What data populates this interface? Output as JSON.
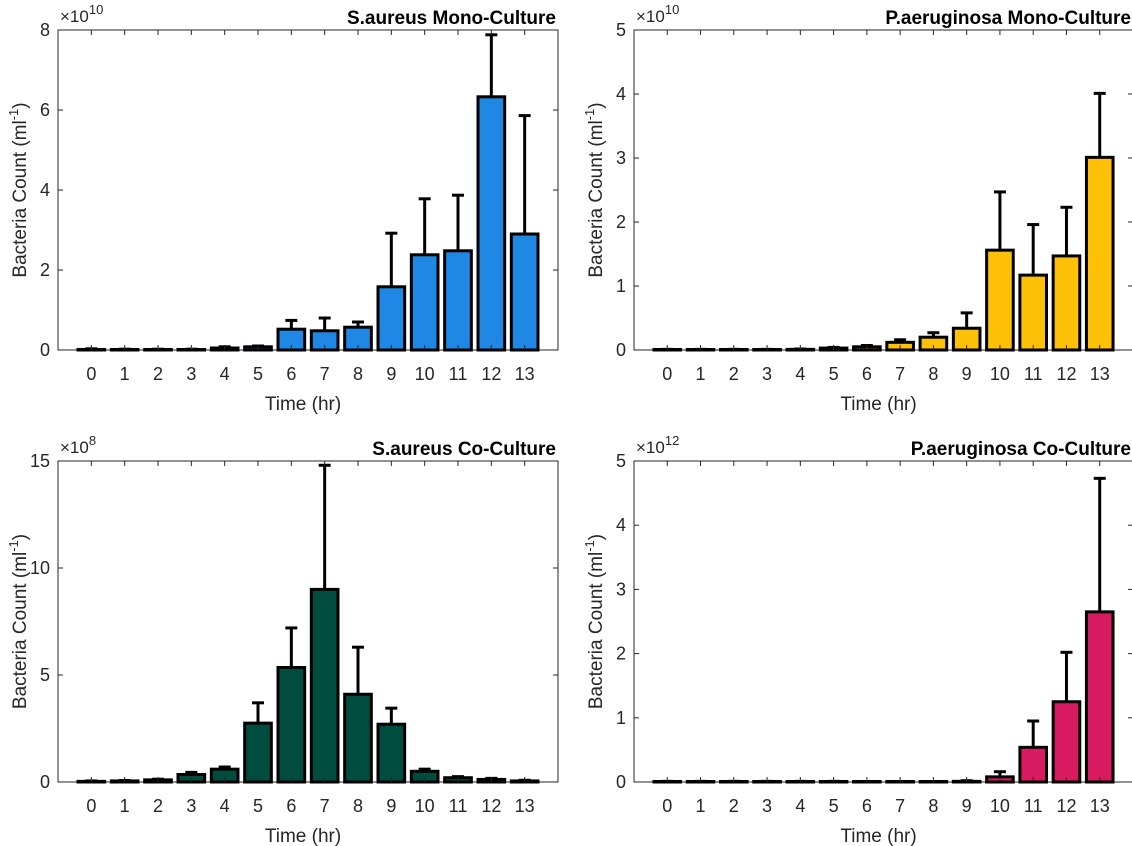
{
  "chart_data": [
    {
      "type": "bar",
      "title": "S.aureus Mono-Culture",
      "xlabel": "Time (hr)",
      "ylabel": "Bacteria Count (ml",
      "ylabel_sup": "-1",
      "ylabel_close": ")",
      "exponent_base": "×10",
      "exponent_power": "10",
      "categories": [
        "0",
        "1",
        "2",
        "3",
        "4",
        "5",
        "6",
        "7",
        "8",
        "9",
        "10",
        "11",
        "12",
        "13"
      ],
      "values": [
        0.01,
        0.01,
        0.01,
        0.01,
        0.05,
        0.08,
        0.52,
        0.48,
        0.57,
        1.58,
        2.38,
        2.48,
        6.33,
        2.9
      ],
      "error_upper": [
        0.03,
        0.02,
        0.02,
        0.02,
        0.08,
        0.1,
        0.74,
        0.8,
        0.7,
        2.92,
        3.78,
        3.87,
        7.88,
        5.86
      ],
      "ylim": [
        0,
        8
      ],
      "yticks": [
        "0",
        "2",
        "4",
        "6",
        "8"
      ],
      "ytick_values": [
        0,
        2,
        4,
        6,
        8
      ],
      "bar_color": "#1f88e5"
    },
    {
      "type": "bar",
      "title": "P.aeruginosa Mono-Culture",
      "xlabel": "Time (hr)",
      "ylabel": "Bacteria Count (ml",
      "ylabel_sup": "-1",
      "ylabel_close": ")",
      "exponent_base": "×10",
      "exponent_power": "10",
      "categories": [
        "0",
        "1",
        "2",
        "3",
        "4",
        "5",
        "6",
        "7",
        "8",
        "9",
        "10",
        "11",
        "12",
        "13"
      ],
      "values": [
        0.005,
        0.005,
        0.005,
        0.005,
        0.01,
        0.03,
        0.05,
        0.12,
        0.2,
        0.34,
        1.56,
        1.17,
        1.47,
        3.01
      ],
      "error_upper": [
        0.01,
        0.01,
        0.01,
        0.01,
        0.015,
        0.04,
        0.07,
        0.16,
        0.27,
        0.58,
        2.47,
        1.96,
        2.23,
        4.01
      ],
      "ylim": [
        0,
        5
      ],
      "yticks": [
        "0",
        "1",
        "2",
        "3",
        "4",
        "5"
      ],
      "ytick_values": [
        0,
        1,
        2,
        3,
        4,
        5
      ],
      "bar_color": "#ffc107"
    },
    {
      "type": "bar",
      "title": "S.aureus Co-Culture",
      "xlabel": "Time (hr)",
      "ylabel": "Bacteria Count (ml",
      "ylabel_sup": "-1",
      "ylabel_close": ")",
      "exponent_base": "×10",
      "exponent_power": "8",
      "categories": [
        "0",
        "1",
        "2",
        "3",
        "4",
        "5",
        "6",
        "7",
        "8",
        "9",
        "10",
        "11",
        "12",
        "13"
      ],
      "values": [
        0.03,
        0.05,
        0.1,
        0.35,
        0.6,
        2.75,
        5.35,
        9.0,
        4.1,
        2.7,
        0.5,
        0.2,
        0.12,
        0.05
      ],
      "error_upper": [
        0.05,
        0.07,
        0.13,
        0.45,
        0.7,
        3.7,
        7.2,
        14.8,
        6.3,
        3.45,
        0.6,
        0.25,
        0.17,
        0.08
      ],
      "ylim": [
        0,
        15
      ],
      "yticks": [
        "0",
        "5",
        "10",
        "15"
      ],
      "ytick_values": [
        0,
        5,
        10,
        15
      ],
      "bar_color": "#004d40"
    },
    {
      "type": "bar",
      "title": "P.aeruginosa Co-Culture",
      "xlabel": "Time (hr)",
      "ylabel": "Bacteria Count (ml",
      "ylabel_sup": "-1",
      "ylabel_close": ")",
      "exponent_base": "×10",
      "exponent_power": "12",
      "categories": [
        "0",
        "1",
        "2",
        "3",
        "4",
        "5",
        "6",
        "7",
        "8",
        "9",
        "10",
        "11",
        "12",
        "13"
      ],
      "values": [
        0.005,
        0.005,
        0.005,
        0.005,
        0.005,
        0.005,
        0.003,
        0.003,
        0.003,
        0.01,
        0.08,
        0.54,
        1.25,
        2.65
      ],
      "error_upper": [
        0.01,
        0.01,
        0.01,
        0.01,
        0.01,
        0.01,
        0.005,
        0.005,
        0.005,
        0.02,
        0.16,
        0.95,
        2.02,
        4.73
      ],
      "ylim": [
        0,
        5
      ],
      "yticks": [
        "0",
        "1",
        "2",
        "3",
        "4",
        "5"
      ],
      "ytick_values": [
        0,
        1,
        2,
        3,
        4,
        5
      ],
      "bar_color": "#d81b60"
    }
  ]
}
